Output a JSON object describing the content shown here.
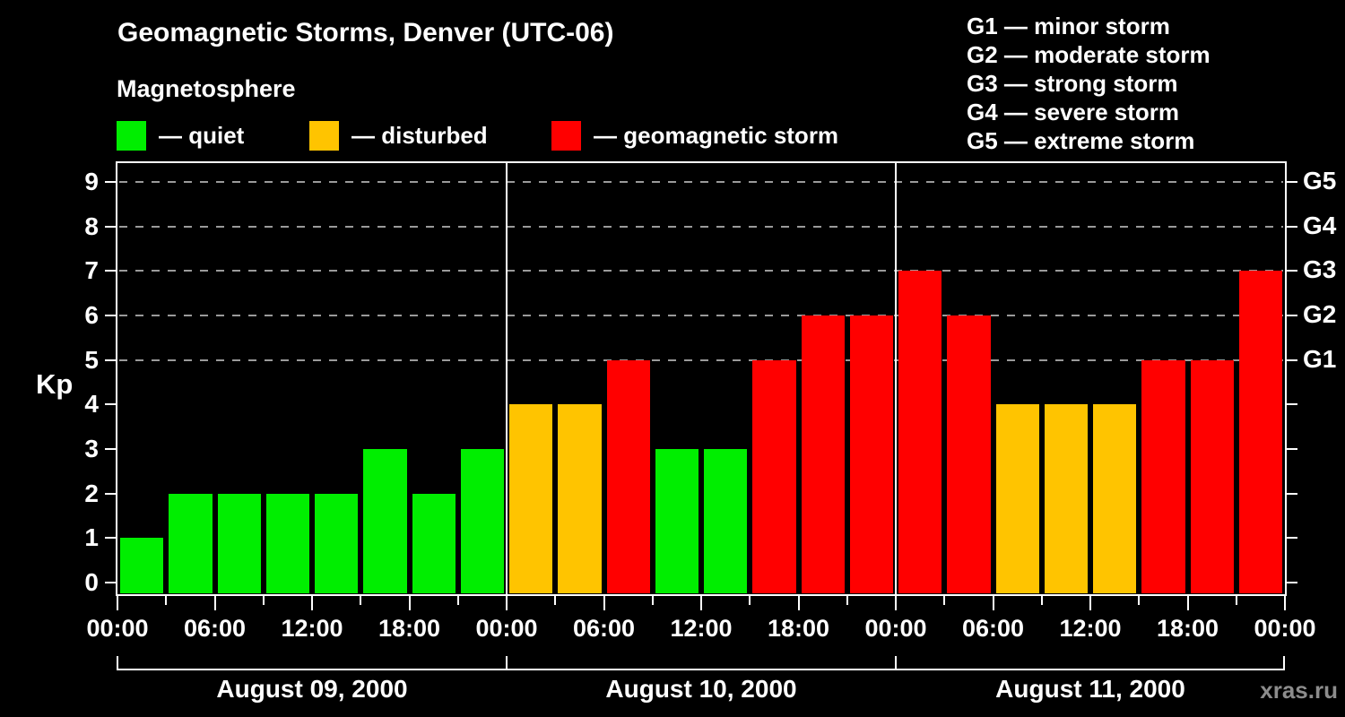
{
  "header": {
    "subtitle": "Magnetosphere"
  },
  "legend": {
    "items": [
      {
        "label": "— quiet",
        "state": "quiet",
        "color": "#00ee00"
      },
      {
        "label": "— disturbed",
        "state": "disturbed",
        "color": "#ffc400"
      },
      {
        "label": "— geomagnetic storm",
        "state": "storm",
        "color": "#ff0000"
      }
    ]
  },
  "g_legend": {
    "lines": [
      "G1 — minor storm",
      "G2 — moderate storm",
      "G3 — strong storm",
      "G4 — severe storm",
      "G5 — extreme storm"
    ]
  },
  "watermark": "xras.ru",
  "chart_data": {
    "type": "bar",
    "title": "Geomagnetic Storms, Denver (UTC-06)",
    "ylabel": "Kp",
    "ylim": [
      0,
      9
    ],
    "y_ticks": [
      0,
      1,
      2,
      3,
      4,
      5,
      6,
      7,
      8,
      9
    ],
    "grid_levels": [
      5,
      6,
      7,
      8,
      9
    ],
    "grid_style": "dashed",
    "legend_position": "top",
    "hours_per_bar": 3,
    "x_tick_labels": [
      "00:00",
      "06:00",
      "12:00",
      "18:00",
      "00:00",
      "06:00",
      "12:00",
      "18:00",
      "00:00",
      "06:00",
      "12:00",
      "18:00",
      "00:00"
    ],
    "right_axis_labels": [
      {
        "label": "G5",
        "kp": 9
      },
      {
        "label": "G4",
        "kp": 8
      },
      {
        "label": "G3",
        "kp": 7
      },
      {
        "label": "G2",
        "kp": 6
      },
      {
        "label": "G1",
        "kp": 5
      }
    ],
    "state_colors": {
      "quiet": "#00ee00",
      "disturbed": "#ffc400",
      "storm": "#ff0000"
    },
    "days": [
      {
        "date": "August 09, 2000",
        "kp": [
          1,
          2,
          2,
          2,
          2,
          3,
          2,
          3
        ],
        "states": [
          "quiet",
          "quiet",
          "quiet",
          "quiet",
          "quiet",
          "quiet",
          "quiet",
          "quiet"
        ]
      },
      {
        "date": "August 10, 2000",
        "kp": [
          4,
          4,
          5,
          3,
          3,
          5,
          6,
          6
        ],
        "states": [
          "disturbed",
          "disturbed",
          "storm",
          "quiet",
          "quiet",
          "storm",
          "storm",
          "storm"
        ]
      },
      {
        "date": "August 11, 2000",
        "kp": [
          7,
          6,
          4,
          4,
          4,
          5,
          5,
          7
        ],
        "states": [
          "storm",
          "storm",
          "disturbed",
          "disturbed",
          "disturbed",
          "storm",
          "storm",
          "storm"
        ]
      }
    ]
  }
}
